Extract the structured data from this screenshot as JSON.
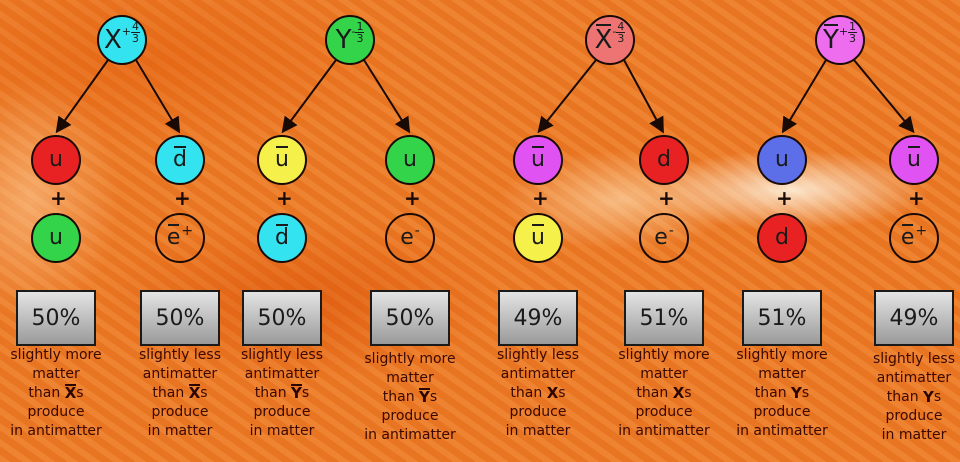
{
  "parents": [
    {
      "symbol": "X",
      "bar": false,
      "sign": "+",
      "num": "4",
      "den": "3",
      "color": "#33e3f0"
    },
    {
      "symbol": "Y",
      "bar": false,
      "sign": "-",
      "num": "1",
      "den": "3",
      "color": "#33d44a"
    },
    {
      "symbol": "X",
      "bar": true,
      "sign": "-",
      "num": "4",
      "den": "3",
      "color": "#ee7474"
    },
    {
      "symbol": "Y",
      "bar": true,
      "sign": "+",
      "num": "1",
      "den": "3",
      "color": "#ee6cee"
    }
  ],
  "columns": [
    {
      "top": {
        "symbol": "u",
        "bar": false,
        "sup": "",
        "color": "#e82222"
      },
      "bottom": {
        "symbol": "u",
        "bar": false,
        "sup": "",
        "color": "#33d44a"
      },
      "plus": "+",
      "percent": "50%",
      "caption": {
        "lines_before": [
          "slightly more",
          "matter"
        ],
        "than": "than",
        "particle": "X",
        "particle_bar": true,
        "suffix": "s",
        "lines_after": [
          "produce",
          "in antimatter"
        ]
      }
    },
    {
      "top": {
        "symbol": "d",
        "bar": true,
        "sup": "",
        "color": "#33e3f0"
      },
      "bottom": {
        "symbol": "e",
        "bar": true,
        "sup": "+",
        "color": ""
      },
      "plus": "+",
      "percent": "50%",
      "caption": {
        "lines_before": [
          "slightly less",
          "antimatter"
        ],
        "than": "than",
        "particle": "X",
        "particle_bar": true,
        "suffix": "s",
        "lines_after": [
          "produce",
          "in matter"
        ]
      }
    },
    {
      "top": {
        "symbol": "u",
        "bar": true,
        "sup": "",
        "color": "#f5f04a"
      },
      "bottom": {
        "symbol": "d",
        "bar": true,
        "sup": "",
        "color": "#33e3f0"
      },
      "plus": "+",
      "percent": "50%",
      "caption": {
        "lines_before": [
          "slightly less",
          "antimatter"
        ],
        "than": "than",
        "particle": "Y",
        "particle_bar": true,
        "suffix": "s",
        "lines_after": [
          "produce",
          "in matter"
        ]
      }
    },
    {
      "top": {
        "symbol": "u",
        "bar": false,
        "sup": "",
        "color": "#33d44a"
      },
      "bottom": {
        "symbol": "e",
        "bar": false,
        "sup": "-",
        "color": ""
      },
      "plus": "+",
      "percent": "50%",
      "caption": {
        "lines_before": [
          "slightly more",
          "matter"
        ],
        "than": "than",
        "particle": "Y",
        "particle_bar": true,
        "suffix": "s",
        "lines_after": [
          "produce",
          "in antimatter"
        ]
      }
    },
    {
      "top": {
        "symbol": "u",
        "bar": true,
        "sup": "",
        "color": "#e052f2"
      },
      "bottom": {
        "symbol": "u",
        "bar": true,
        "sup": "",
        "color": "#f5f04a"
      },
      "plus": "+",
      "percent": "49%",
      "caption": {
        "lines_before": [
          "slightly less",
          "antimatter"
        ],
        "than": "than",
        "particle": "X",
        "particle_bar": false,
        "suffix": "s",
        "lines_after": [
          "produce",
          "in matter"
        ]
      }
    },
    {
      "top": {
        "symbol": "d",
        "bar": false,
        "sup": "",
        "color": "#e82222"
      },
      "bottom": {
        "symbol": "e",
        "bar": false,
        "sup": "-",
        "color": ""
      },
      "plus": "+",
      "percent": "51%",
      "caption": {
        "lines_before": [
          "slightly more",
          "matter"
        ],
        "than": "than",
        "particle": "X",
        "particle_bar": false,
        "suffix": "s",
        "lines_after": [
          "produce",
          "in antimatter"
        ]
      }
    },
    {
      "top": {
        "symbol": "u",
        "bar": false,
        "sup": "",
        "color": "#5c6ee8"
      },
      "bottom": {
        "symbol": "d",
        "bar": false,
        "sup": "",
        "color": "#e82222"
      },
      "plus": "+",
      "percent": "51%",
      "caption": {
        "lines_before": [
          "slightly more",
          "matter"
        ],
        "than": "than",
        "particle": "Y",
        "particle_bar": false,
        "suffix": "s",
        "lines_after": [
          "produce",
          "in antimatter"
        ]
      }
    },
    {
      "top": {
        "symbol": "u",
        "bar": true,
        "sup": "",
        "color": "#e052f2"
      },
      "bottom": {
        "symbol": "e",
        "bar": true,
        "sup": "+",
        "color": ""
      },
      "plus": "+",
      "percent": "49%",
      "caption": {
        "lines_before": [
          "slightly less",
          "antimatter"
        ],
        "than": "than",
        "particle": "Y",
        "particle_bar": false,
        "suffix": "s",
        "lines_after": [
          "produce",
          "in matter"
        ]
      }
    }
  ]
}
